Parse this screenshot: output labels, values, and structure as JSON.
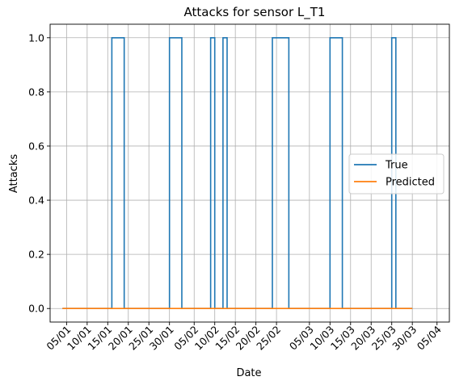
{
  "chart_data": {
    "type": "line",
    "title": "Attacks for sensor L_T1",
    "xlabel": "Date",
    "ylabel": "Attacks",
    "xlim": [
      "2017-01-01",
      "2017-04-08"
    ],
    "ylim": [
      -0.05,
      1.05
    ],
    "grid": true,
    "legend_position": "center-right",
    "x_tick_labels": [
      "05/01",
      "10/01",
      "15/01",
      "20/01",
      "25/01",
      "30/01",
      "05/02",
      "10/02",
      "15/02",
      "20/02",
      "25/02",
      "05/03",
      "10/03",
      "15/03",
      "20/03",
      "25/03",
      "30/03",
      "05/04"
    ],
    "x_tick_dates": [
      "2017-01-05",
      "2017-01-10",
      "2017-01-15",
      "2017-01-20",
      "2017-01-25",
      "2017-01-30",
      "2017-02-05",
      "2017-02-10",
      "2017-02-15",
      "2017-02-20",
      "2017-02-25",
      "2017-03-05",
      "2017-03-10",
      "2017-03-15",
      "2017-03-20",
      "2017-03-25",
      "2017-03-30",
      "2017-04-05"
    ],
    "y_ticks": [
      0.0,
      0.2,
      0.4,
      0.6,
      0.8,
      1.0
    ],
    "y_tick_labels": [
      "0.0",
      "0.2",
      "0.4",
      "0.6",
      "0.8",
      "1.0"
    ],
    "series": [
      {
        "name": "True",
        "color": "#1f77b4",
        "step": true,
        "points": [
          [
            "2017-01-04",
            0
          ],
          [
            "2017-01-16",
            0
          ],
          [
            "2017-01-16",
            1
          ],
          [
            "2017-01-19",
            1
          ],
          [
            "2017-01-19",
            0
          ],
          [
            "2017-01-30",
            0
          ],
          [
            "2017-01-30",
            1
          ],
          [
            "2017-02-02",
            1
          ],
          [
            "2017-02-02",
            0
          ],
          [
            "2017-02-09",
            0
          ],
          [
            "2017-02-09",
            1
          ],
          [
            "2017-02-10",
            1
          ],
          [
            "2017-02-10",
            0
          ],
          [
            "2017-02-12",
            0
          ],
          [
            "2017-02-12",
            1
          ],
          [
            "2017-02-13",
            1
          ],
          [
            "2017-02-13",
            0
          ],
          [
            "2017-02-24",
            0
          ],
          [
            "2017-02-24",
            1
          ],
          [
            "2017-02-28",
            1
          ],
          [
            "2017-02-28",
            0
          ],
          [
            "2017-03-10",
            0
          ],
          [
            "2017-03-10",
            1
          ],
          [
            "2017-03-13",
            1
          ],
          [
            "2017-03-13",
            0
          ],
          [
            "2017-03-25",
            0
          ],
          [
            "2017-03-25",
            1
          ],
          [
            "2017-03-26",
            1
          ],
          [
            "2017-03-26",
            0
          ],
          [
            "2017-03-30",
            0
          ]
        ]
      },
      {
        "name": "Predicted",
        "color": "#ff7f0e",
        "step": false,
        "points": [
          [
            "2017-01-04",
            0
          ],
          [
            "2017-03-30",
            0
          ]
        ]
      }
    ]
  }
}
